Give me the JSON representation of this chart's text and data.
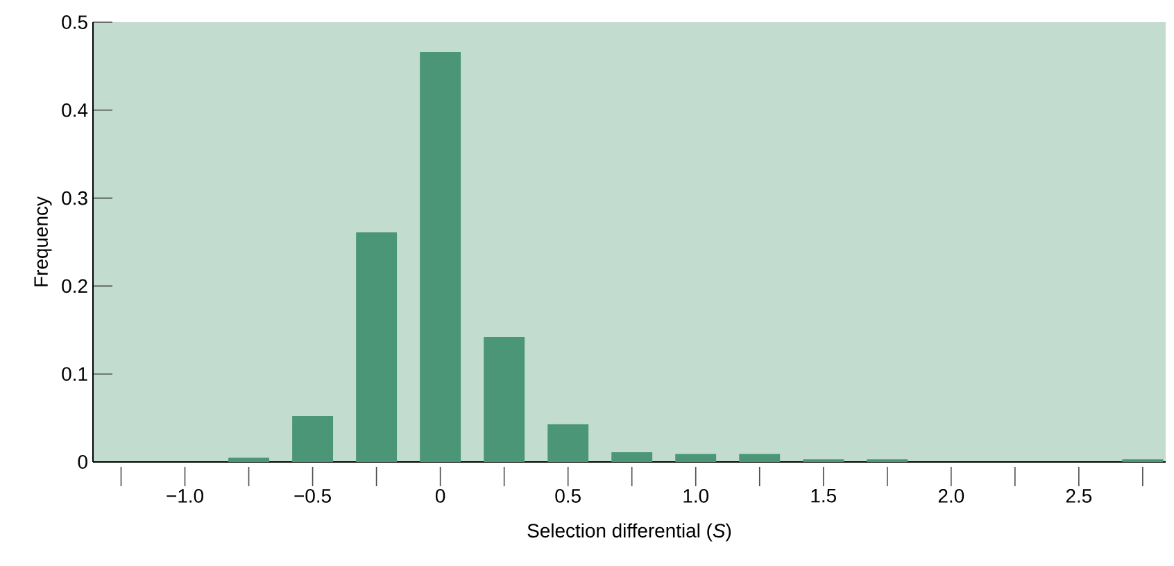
{
  "chart_data": {
    "type": "bar",
    "xlabel": "Selection differential (*S*)",
    "ylabel": "Frequency",
    "x": [
      -0.75,
      -0.5,
      -0.25,
      0,
      0.25,
      0.5,
      0.75,
      1.0,
      1.25,
      1.5,
      1.75,
      2.75
    ],
    "values": [
      0.005,
      0.052,
      0.261,
      0.466,
      0.142,
      0.043,
      0.011,
      0.009,
      0.009,
      0.003,
      0.003,
      0.003
    ],
    "color": "#4a9677",
    "xlim": [
      -1.36,
      2.84
    ],
    "ylim": [
      0,
      0.5
    ],
    "xticks": [
      {
        "value": -1.25,
        "label": null
      },
      {
        "value": -1.0,
        "label": "−1.0"
      },
      {
        "value": -0.75,
        "label": null
      },
      {
        "value": -0.5,
        "label": "−0.5"
      },
      {
        "value": -0.25,
        "label": null
      },
      {
        "value": 0,
        "label": "0"
      },
      {
        "value": 0.25,
        "label": null
      },
      {
        "value": 0.5,
        "label": "0.5"
      },
      {
        "value": 0.75,
        "label": null
      },
      {
        "value": 1.0,
        "label": "1.0"
      },
      {
        "value": 1.25,
        "label": null
      },
      {
        "value": 1.5,
        "label": "1.5"
      },
      {
        "value": 1.75,
        "label": null
      },
      {
        "value": 2.0,
        "label": "2.0"
      },
      {
        "value": 2.25,
        "label": null
      },
      {
        "value": 2.5,
        "label": "2.5"
      },
      {
        "value": 2.75,
        "label": null
      }
    ],
    "yticks": [
      0,
      0.1,
      0.2,
      0.3,
      0.4,
      0.5
    ],
    "grid": false
  }
}
